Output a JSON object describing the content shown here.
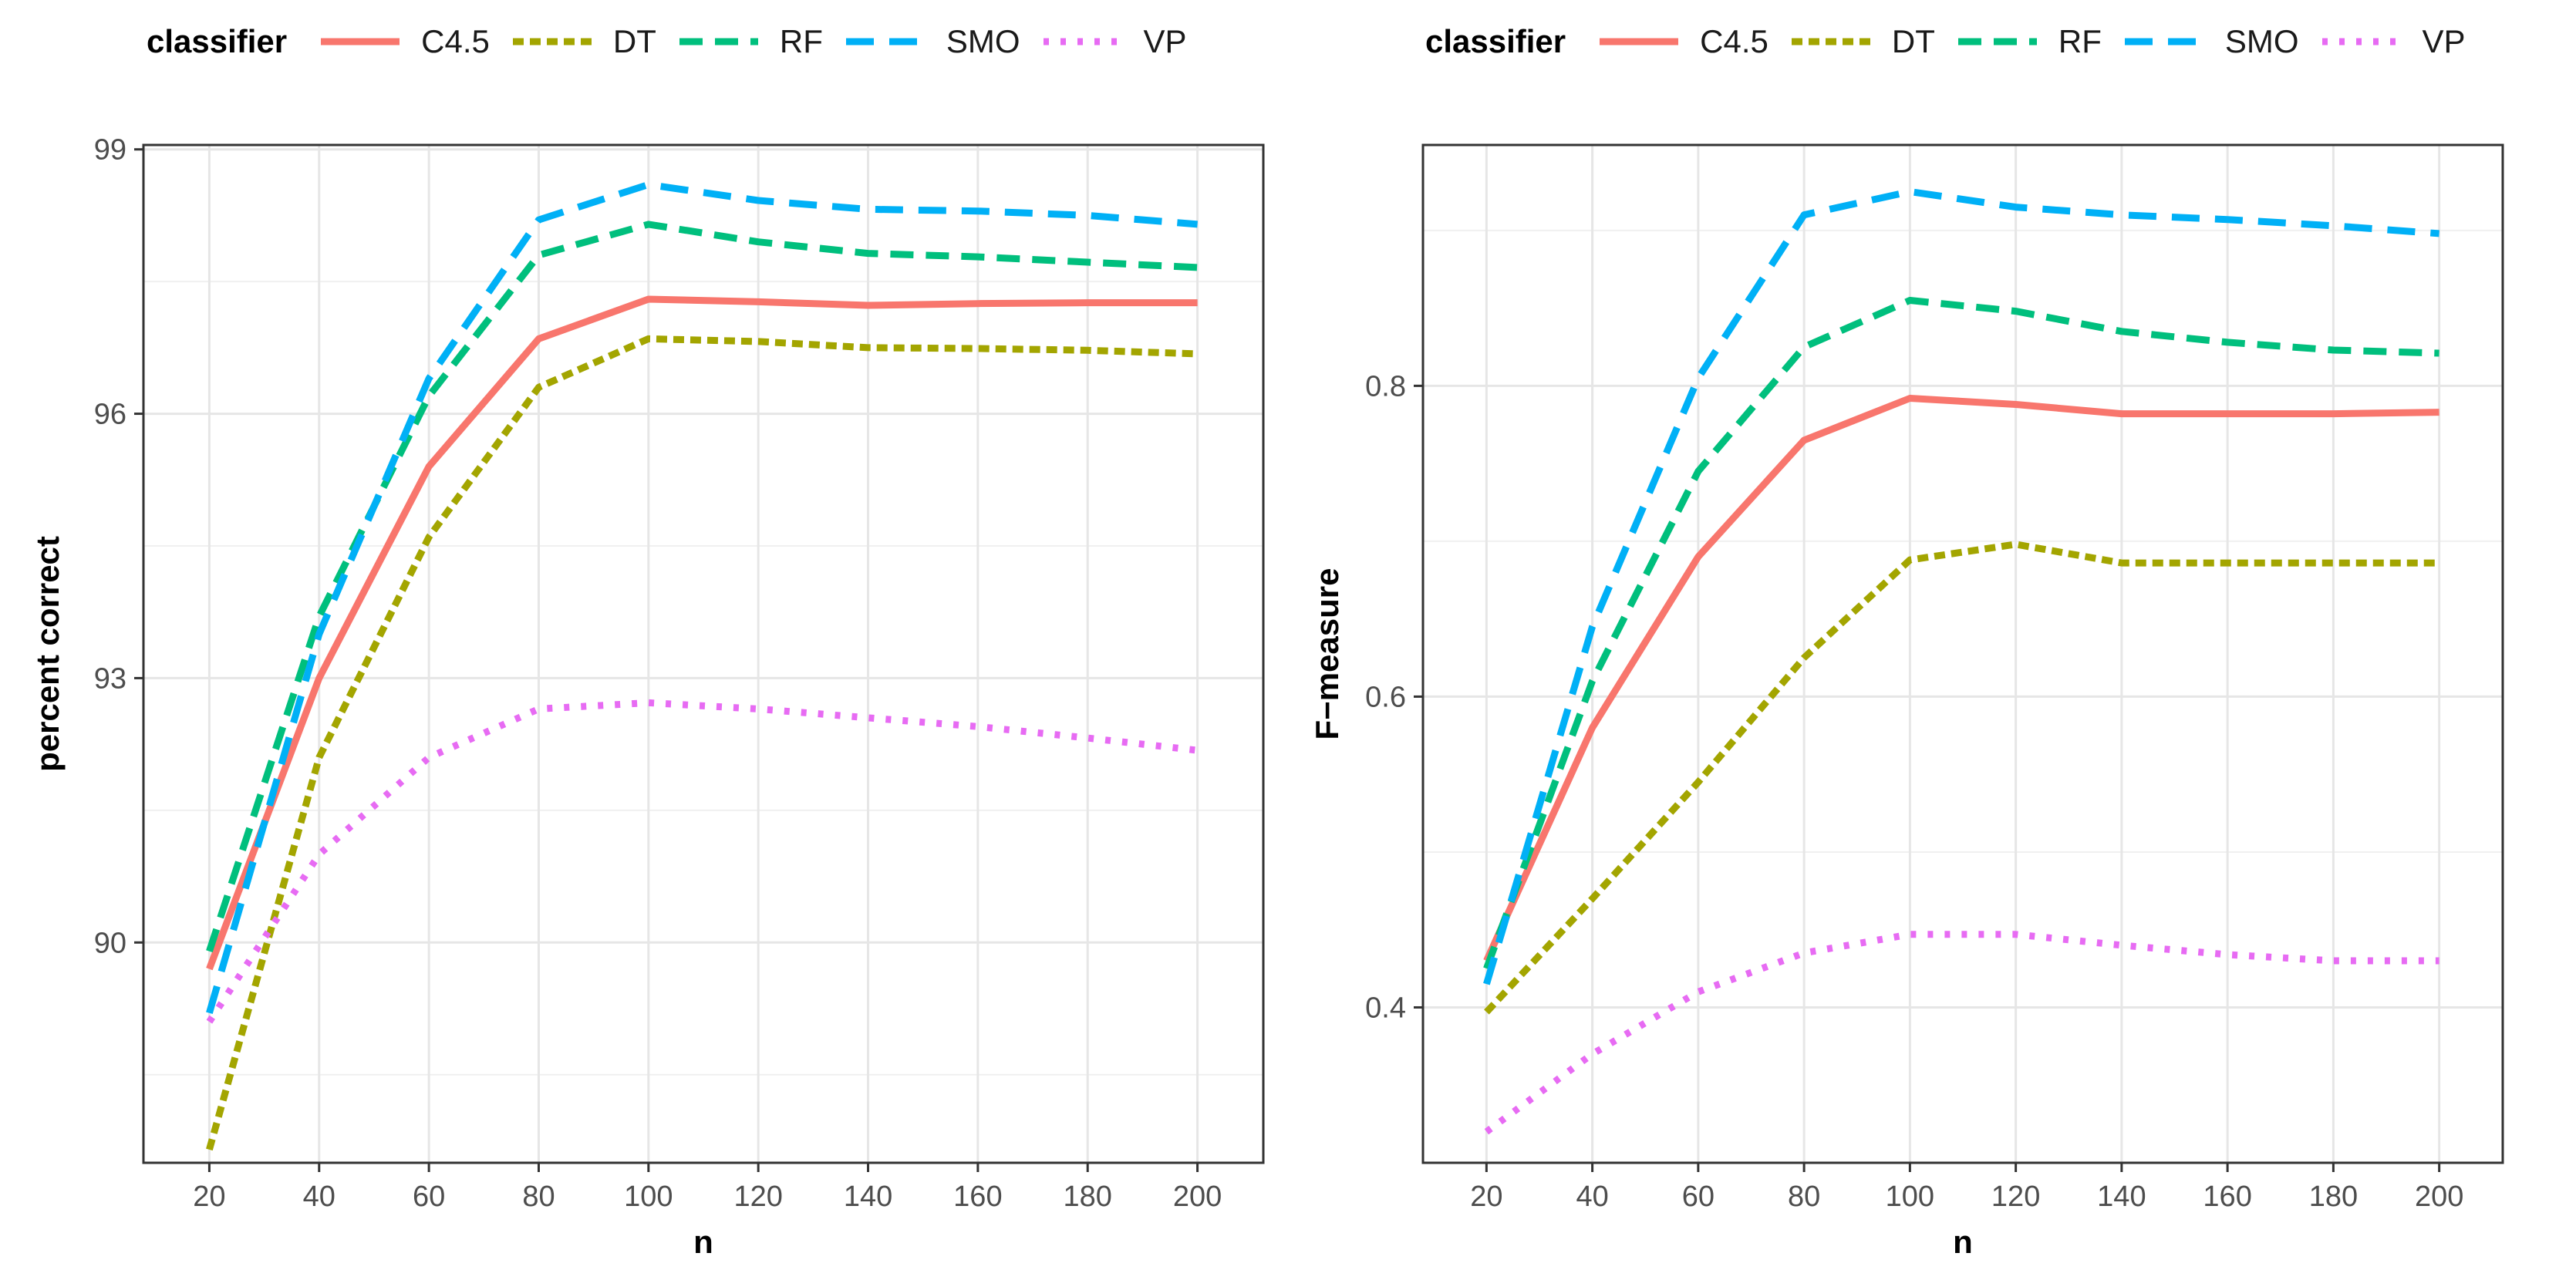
{
  "legend": {
    "title": "classifier",
    "items": [
      {
        "name": "C4.5",
        "color": "#F8766D",
        "dash": "solid"
      },
      {
        "name": "DT",
        "color": "#A3A500",
        "dash": "dotted"
      },
      {
        "name": "RF",
        "color": "#00BF7D",
        "dash": "dashed"
      },
      {
        "name": "SMO",
        "color": "#00B0F6",
        "dash": "longdash"
      },
      {
        "name": "VP",
        "color": "#E76BF3",
        "dash": "dotted-fine"
      }
    ]
  },
  "chart_data": [
    {
      "type": "line",
      "title": "",
      "xlabel": "n",
      "ylabel": "percent correct",
      "x": [
        20,
        40,
        60,
        80,
        100,
        120,
        140,
        160,
        180,
        200
      ],
      "xlim": [
        8,
        212
      ],
      "ylim": [
        87.5,
        99.05
      ],
      "xticks": [
        20,
        40,
        60,
        80,
        100,
        120,
        140,
        160,
        180,
        200
      ],
      "yticks": [
        90,
        93,
        96,
        99
      ],
      "grid": true,
      "series": [
        {
          "name": "C4.5",
          "values": [
            89.7,
            93.0,
            95.4,
            96.85,
            97.3,
            97.27,
            97.23,
            97.25,
            97.26,
            97.26
          ]
        },
        {
          "name": "DT",
          "values": [
            87.65,
            92.1,
            94.6,
            96.3,
            96.85,
            96.82,
            96.75,
            96.74,
            96.72,
            96.68
          ]
        },
        {
          "name": "RF",
          "values": [
            89.9,
            93.7,
            96.2,
            97.8,
            98.15,
            97.95,
            97.82,
            97.78,
            97.72,
            97.66
          ]
        },
        {
          "name": "SMO",
          "values": [
            89.2,
            93.5,
            96.4,
            98.2,
            98.6,
            98.42,
            98.32,
            98.3,
            98.25,
            98.15
          ]
        },
        {
          "name": "VP",
          "values": [
            89.1,
            91.0,
            92.1,
            92.65,
            92.72,
            92.65,
            92.55,
            92.45,
            92.32,
            92.18
          ]
        }
      ]
    },
    {
      "type": "line",
      "title": "",
      "xlabel": "n",
      "ylabel": "F−measure",
      "x": [
        20,
        40,
        60,
        80,
        100,
        120,
        140,
        160,
        180,
        200
      ],
      "xlim": [
        8,
        212
      ],
      "ylim": [
        0.3,
        0.955
      ],
      "xticks": [
        20,
        40,
        60,
        80,
        100,
        120,
        140,
        160,
        180,
        200
      ],
      "yticks": [
        0.4,
        0.6,
        0.8
      ],
      "grid": true,
      "series": [
        {
          "name": "C4.5",
          "values": [
            0.43,
            0.58,
            0.69,
            0.765,
            0.792,
            0.788,
            0.782,
            0.782,
            0.782,
            0.783
          ]
        },
        {
          "name": "DT",
          "values": [
            0.397,
            0.47,
            0.545,
            0.625,
            0.688,
            0.698,
            0.686,
            0.686,
            0.686,
            0.686
          ]
        },
        {
          "name": "RF",
          "values": [
            0.425,
            0.61,
            0.745,
            0.825,
            0.855,
            0.848,
            0.835,
            0.828,
            0.823,
            0.821
          ]
        },
        {
          "name": "SMO",
          "values": [
            0.415,
            0.645,
            0.805,
            0.91,
            0.925,
            0.915,
            0.91,
            0.907,
            0.903,
            0.898
          ]
        },
        {
          "name": "VP",
          "values": [
            0.32,
            0.37,
            0.41,
            0.435,
            0.447,
            0.447,
            0.44,
            0.434,
            0.43,
            0.43
          ]
        }
      ]
    }
  ]
}
